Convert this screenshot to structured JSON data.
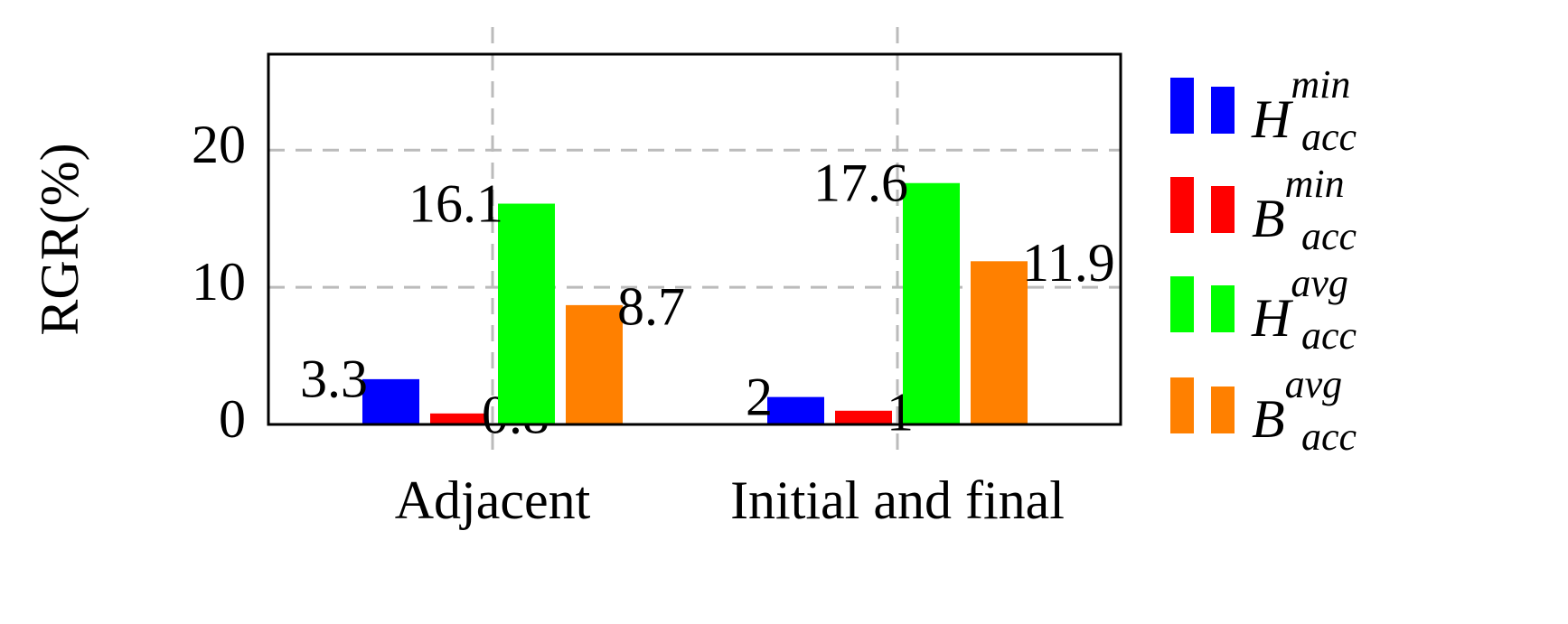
{
  "chart_data": {
    "type": "bar",
    "y_label": "RGR(%)",
    "categories": [
      "Adjacent",
      "Initial and final"
    ],
    "series": [
      {
        "name": "H",
        "sub": "acc",
        "sup": "min",
        "color": "#0000ff",
        "values": [
          3.3,
          2
        ]
      },
      {
        "name": "B",
        "sub": "acc",
        "sup": "min",
        "color": "#ff0000",
        "values": [
          0.8,
          1
        ]
      },
      {
        "name": "H",
        "sub": "acc",
        "sup": "avg",
        "color": "#00ff00",
        "values": [
          16.1,
          17.6
        ]
      },
      {
        "name": "B",
        "sub": "acc",
        "sup": "avg",
        "color": "#ff8000",
        "values": [
          8.7,
          11.9
        ]
      }
    ],
    "ylim": [
      0,
      27
    ],
    "yticks": [
      0,
      10,
      20
    ],
    "grid": true,
    "legend": "outside right"
  }
}
